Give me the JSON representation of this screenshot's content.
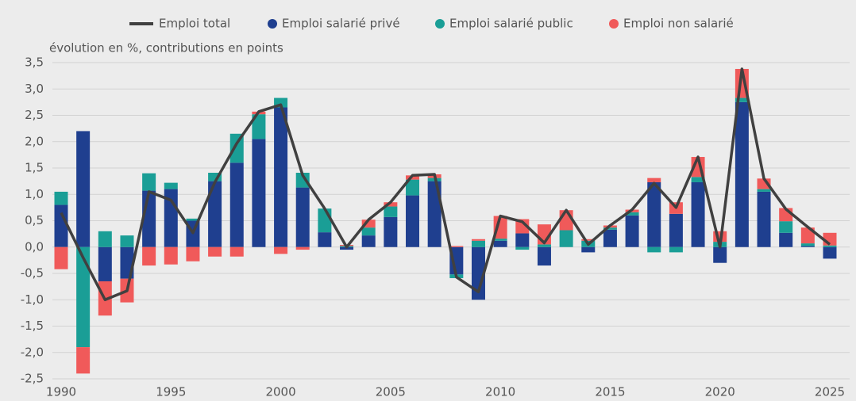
{
  "chart_data": {
    "type": "bar",
    "subtitle": "évolution en %, contributions en points",
    "x": [
      1990,
      1991,
      1992,
      1993,
      1994,
      1995,
      1996,
      1997,
      1998,
      1999,
      2000,
      2001,
      2002,
      2003,
      2004,
      2005,
      2006,
      2007,
      2008,
      2009,
      2010,
      2011,
      2012,
      2013,
      2014,
      2015,
      2016,
      2017,
      2018,
      2019,
      2020,
      2021,
      2022,
      2023,
      2024,
      2025
    ],
    "series": [
      {
        "name": "Emploi total",
        "type": "line",
        "color": "#404040",
        "values": [
          0.65,
          -0.2,
          -1.0,
          -0.83,
          1.05,
          0.89,
          0.27,
          1.23,
          1.97,
          2.57,
          2.7,
          1.36,
          0.73,
          0.0,
          0.52,
          0.85,
          1.36,
          1.38,
          -0.57,
          -0.85,
          0.59,
          0.48,
          0.08,
          0.7,
          0.05,
          0.41,
          0.71,
          1.21,
          0.75,
          1.71,
          0.0,
          3.38,
          1.3,
          0.72,
          0.38,
          0.05
        ]
      },
      {
        "name": "Emploi salarié privé",
        "type": "bar",
        "color": "#1f3f8f",
        "values": [
          0.8,
          2.2,
          -0.65,
          -0.6,
          1.07,
          1.1,
          0.5,
          1.25,
          1.6,
          2.05,
          2.65,
          1.13,
          0.28,
          -0.05,
          0.22,
          0.57,
          0.98,
          1.25,
          -0.52,
          -1.0,
          0.12,
          0.26,
          -0.35,
          0.0,
          -0.1,
          0.33,
          0.6,
          1.23,
          0.63,
          1.23,
          -0.3,
          2.75,
          1.05,
          0.27,
          0.02,
          -0.22
        ]
      },
      {
        "name": "Emploi salarié public",
        "type": "bar",
        "color": "#1a9e96",
        "values": [
          0.25,
          -1.9,
          0.3,
          0.22,
          0.33,
          0.12,
          0.04,
          0.16,
          0.55,
          0.47,
          0.18,
          0.28,
          0.45,
          0.02,
          0.15,
          0.2,
          0.3,
          0.06,
          -0.07,
          0.12,
          0.04,
          -0.05,
          0.05,
          0.32,
          0.12,
          0.04,
          0.06,
          -0.1,
          -0.1,
          0.1,
          0.1,
          0.08,
          0.05,
          0.22,
          0.05,
          0.03
        ]
      },
      {
        "name": "Emploi non salarié",
        "type": "bar",
        "color": "#f05a5a",
        "values": [
          -0.42,
          -0.5,
          -0.65,
          -0.45,
          -0.35,
          -0.33,
          -0.27,
          -0.18,
          -0.18,
          0.05,
          -0.13,
          -0.05,
          0.0,
          0.02,
          0.15,
          0.08,
          0.08,
          0.07,
          0.02,
          0.03,
          0.43,
          0.27,
          0.38,
          0.38,
          0.03,
          0.04,
          0.05,
          0.08,
          0.22,
          0.38,
          0.2,
          0.55,
          0.2,
          0.25,
          0.3,
          0.24
        ]
      }
    ],
    "xlim": [
      1990,
      2025
    ],
    "xticks": [
      1990,
      1995,
      2000,
      2005,
      2010,
      2015,
      2020,
      2025
    ],
    "ylim": [
      -2.5,
      3.5
    ],
    "yticks": [
      {
        "value": 3.5,
        "label": "3,5"
      },
      {
        "value": 3,
        "label": "3,0"
      },
      {
        "value": 2.5,
        "label": "2,5"
      },
      {
        "value": 2,
        "label": "2,0"
      },
      {
        "value": 1.5,
        "label": "1,5"
      },
      {
        "value": 1,
        "label": "1,0"
      },
      {
        "value": 0.5,
        "label": "0,5"
      },
      {
        "value": 0,
        "label": "0,0"
      },
      {
        "value": -0.5,
        "label": "-0,5"
      },
      {
        "value": -1,
        "label": "-1,0"
      },
      {
        "value": -1.5,
        "label": "-1,5"
      },
      {
        "value": -2,
        "label": "-2,0"
      },
      {
        "value": -2.5,
        "label": "-2,5"
      }
    ],
    "grid": true
  }
}
